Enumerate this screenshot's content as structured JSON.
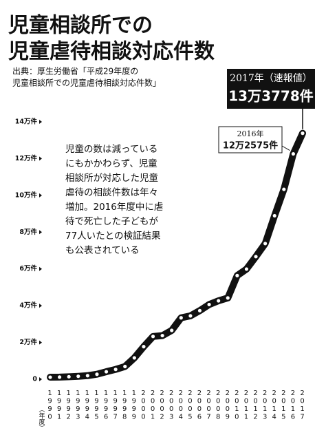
{
  "chart_data": {
    "type": "line",
    "title": [
      "児童相談所での",
      "児童虐待相談対応件数"
    ],
    "source": [
      "出典：厚生労働省「平成29年度の",
      "児童相談所での児童虐待相談対応件数」"
    ],
    "annotation": [
      "児童の数は減っている",
      "にもかかわらず、児童",
      "相談所が対応した児童",
      "虐待の相談件数は年々",
      "増加。2016年度中に虐",
      "待で死亡した子どもが",
      "77人いたとの検証結果",
      "も公表されている"
    ],
    "x_label": "（年度）",
    "categories": [
      "1990",
      "1991",
      "1992",
      "1993",
      "1994",
      "1995",
      "1996",
      "1997",
      "1998",
      "1999",
      "2000",
      "2001",
      "2002",
      "2003",
      "2004",
      "2005",
      "2006",
      "2007",
      "2008",
      "2009",
      "2010",
      "2011",
      "2012",
      "2013",
      "2014",
      "2015",
      "2016",
      "2017"
    ],
    "series": [
      {
        "color": "#111111",
        "values": [
          1101,
          1171,
          1372,
          1611,
          1961,
          2722,
          4102,
          5352,
          6932,
          11631,
          17725,
          23274,
          23738,
          26569,
          33408,
          34472,
          37323,
          40639,
          42664,
          44211,
          56384,
          59919,
          66701,
          73802,
          88931,
          103286,
          122575,
          133778
        ],
        "value_labels": [
          null,
          null,
          null,
          null,
          null,
          null,
          null,
          null,
          null,
          null,
          null,
          null,
          null,
          null,
          null,
          null,
          null,
          null,
          null,
          null,
          null,
          null,
          null,
          null,
          null,
          null,
          "12万2575件",
          "13万3778件"
        ],
        "value_label_titles": [
          null,
          null,
          null,
          null,
          null,
          null,
          null,
          null,
          null,
          null,
          null,
          null,
          null,
          null,
          null,
          null,
          null,
          null,
          null,
          null,
          null,
          null,
          null,
          null,
          null,
          null,
          "2016年",
          "2017年（速報値）"
        ]
      }
    ],
    "ylim": [
      0,
      140000
    ],
    "yticks": [
      0,
      {
        "value": 20000,
        "label": "2万件"
      },
      {
        "value": 40000,
        "label": "4万件"
      },
      {
        "value": 60000,
        "label": "6万件"
      },
      {
        "value": 80000,
        "label": "8万件"
      },
      {
        "value": 100000,
        "label": "10万件"
      },
      {
        "value": 120000,
        "label": "12万件"
      },
      {
        "value": 140000,
        "label": "14万件"
      }
    ],
    "grid": false
  }
}
